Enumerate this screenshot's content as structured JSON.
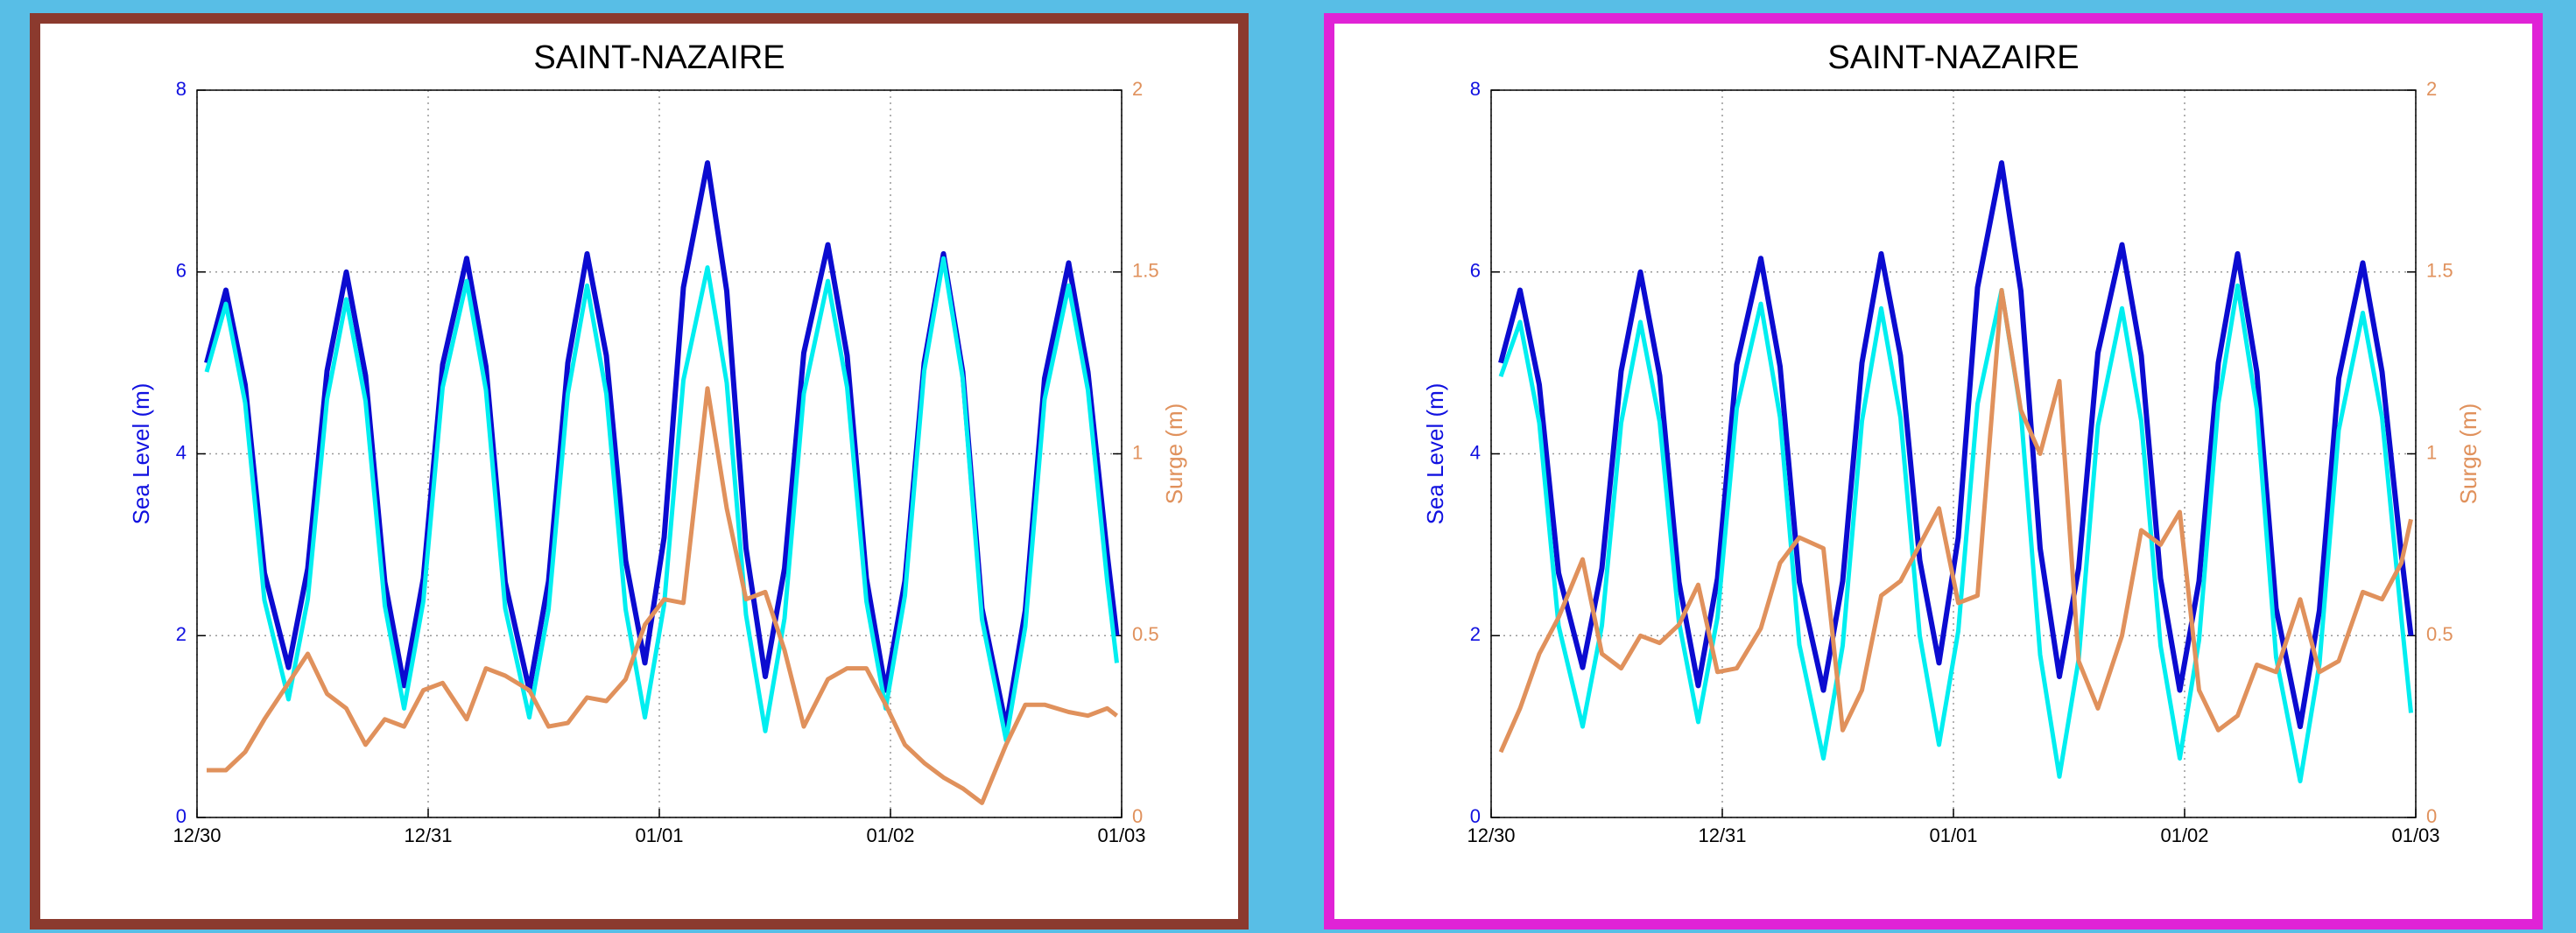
{
  "chart_data": [
    {
      "type": "line",
      "title": "SAINT-NAZAIRE",
      "ylabel": "Sea Level (m)",
      "y2label": "Surge (m)",
      "frame_color": "#8b3a2e",
      "grid": true,
      "x": [
        1,
        3,
        5,
        7,
        9.5,
        11.5,
        13.5,
        15.5,
        17.5,
        19.5,
        21.5,
        23.5,
        25.5,
        28,
        30,
        32,
        34.5,
        36.5,
        38.5,
        40.5,
        42.5,
        44.5,
        46.5,
        48.5,
        50.5,
        53,
        55,
        57,
        59,
        61,
        63,
        65.5,
        67.5,
        69.5,
        71.5,
        73.5,
        75.5,
        77.5,
        79.5,
        81.5,
        84,
        86,
        88,
        90.5,
        92.5,
        94.5,
        95.5
      ],
      "xlim": [
        0,
        96
      ],
      "xticks": [
        {
          "value": 0,
          "label": "12/30"
        },
        {
          "value": 24,
          "label": "12/31"
        },
        {
          "value": 48,
          "label": "01/01"
        },
        {
          "value": 72,
          "label": "01/02"
        },
        {
          "value": 96,
          "label": "01/03"
        }
      ],
      "ylim": [
        0,
        8
      ],
      "yticks": [
        0,
        2,
        4,
        6,
        8
      ],
      "y2lim": [
        0,
        2
      ],
      "y2ticks": [
        0,
        0.5,
        1,
        1.5,
        2
      ],
      "series": [
        {
          "color": "#0b0bd0",
          "values": [
            5.0,
            5.8,
            4.76,
            2.69,
            1.65,
            2.74,
            4.91,
            6.0,
            4.86,
            2.59,
            1.45,
            2.63,
            4.98,
            6.15,
            4.96,
            2.59,
            1.4,
            2.6,
            5.0,
            6.2,
            5.08,
            2.83,
            1.7,
            3.08,
            5.83,
            7.2,
            5.79,
            2.96,
            1.55,
            2.74,
            5.11,
            6.3,
            5.08,
            2.63,
            1.4,
            2.6,
            5.0,
            6.2,
            4.9,
            2.3,
            1.0,
            2.28,
            4.83,
            6.1,
            4.9,
            2.9,
            2.0
          ]
        },
        {
          "color": "#00eef0",
          "values": [
            4.9,
            5.65,
            4.56,
            2.39,
            1.3,
            2.4,
            4.6,
            5.7,
            4.58,
            2.33,
            1.2,
            2.38,
            4.73,
            5.9,
            4.7,
            2.3,
            1.1,
            2.29,
            4.66,
            5.85,
            4.66,
            2.29,
            1.1,
            2.34,
            4.81,
            6.05,
            4.78,
            2.23,
            0.95,
            2.19,
            4.66,
            5.9,
            4.73,
            2.38,
            1.2,
            2.44,
            4.91,
            6.15,
            4.83,
            2.18,
            0.85,
            2.1,
            4.6,
            5.85,
            4.7,
            2.6,
            1.7
          ]
        },
        {
          "color": "#e0915c",
          "axis": "y2",
          "values": [
            0.13,
            0.13,
            0.18,
            0.27,
            0.37,
            0.45,
            0.34,
            0.3,
            0.2,
            0.27,
            0.25,
            0.35,
            0.37,
            0.27,
            0.41,
            0.39,
            0.35,
            0.25,
            0.26,
            0.33,
            0.32,
            0.38,
            0.53,
            0.6,
            0.59,
            1.18,
            0.85,
            0.6,
            0.62,
            0.46,
            0.25,
            0.38,
            0.41,
            0.41,
            0.31,
            0.2,
            0.15,
            0.11,
            0.08,
            0.04,
            0.2,
            0.31,
            0.31,
            0.29,
            0.28,
            0.3,
            0.28
          ]
        }
      ]
    },
    {
      "type": "line",
      "title": "SAINT-NAZAIRE",
      "ylabel": "Sea Level (m)",
      "y2label": "Surge (m)",
      "frame_color": "#e023d6",
      "grid": true,
      "x": [
        1,
        3,
        5,
        7,
        9.5,
        11.5,
        13.5,
        15.5,
        17.5,
        19.5,
        21.5,
        23.5,
        25.5,
        28,
        30,
        32,
        34.5,
        36.5,
        38.5,
        40.5,
        42.5,
        44.5,
        46.5,
        48.5,
        50.5,
        53,
        55,
        57,
        59,
        61,
        63,
        65.5,
        67.5,
        69.5,
        71.5,
        73.5,
        75.5,
        77.5,
        79.5,
        81.5,
        84,
        86,
        88,
        90.5,
        92.5,
        94.5,
        95.5
      ],
      "xlim": [
        0,
        96
      ],
      "xticks": [
        {
          "value": 0,
          "label": "12/30"
        },
        {
          "value": 24,
          "label": "12/31"
        },
        {
          "value": 48,
          "label": "01/01"
        },
        {
          "value": 72,
          "label": "01/02"
        },
        {
          "value": 96,
          "label": "01/03"
        }
      ],
      "ylim": [
        0,
        8
      ],
      "yticks": [
        0,
        2,
        4,
        6,
        8
      ],
      "y2lim": [
        0,
        2
      ],
      "y2ticks": [
        0,
        0.5,
        1,
        1.5,
        2
      ],
      "series": [
        {
          "color": "#0b0bd0",
          "values": [
            5.0,
            5.8,
            4.76,
            2.69,
            1.65,
            2.74,
            4.91,
            6.0,
            4.86,
            2.59,
            1.45,
            2.63,
            4.98,
            6.15,
            4.96,
            2.59,
            1.4,
            2.6,
            5.0,
            6.2,
            5.08,
            2.83,
            1.7,
            3.08,
            5.83,
            7.2,
            5.79,
            2.96,
            1.55,
            2.74,
            5.11,
            6.3,
            5.08,
            2.63,
            1.4,
            2.6,
            5.0,
            6.2,
            4.9,
            2.3,
            1.0,
            2.28,
            4.83,
            6.1,
            4.9,
            2.9,
            2.0
          ]
        },
        {
          "color": "#00eef0",
          "values": [
            4.85,
            5.45,
            4.34,
            2.11,
            1.0,
            2.11,
            4.34,
            5.45,
            4.35,
            2.15,
            1.05,
            2.2,
            4.5,
            5.65,
            4.4,
            1.9,
            0.65,
            1.89,
            4.36,
            5.6,
            4.4,
            2.0,
            0.8,
            2.05,
            4.55,
            5.8,
            4.46,
            1.79,
            0.45,
            1.74,
            4.31,
            5.6,
            4.36,
            1.89,
            0.65,
            1.95,
            4.55,
            5.85,
            4.49,
            1.76,
            0.4,
            1.69,
            4.26,
            5.55,
            4.4,
            2.2,
            1.15
          ]
        },
        {
          "color": "#e0915c",
          "axis": "y2",
          "values": [
            0.18,
            0.3,
            0.45,
            0.55,
            0.71,
            0.45,
            0.41,
            0.5,
            0.48,
            0.53,
            0.64,
            0.4,
            0.41,
            0.52,
            0.7,
            0.77,
            0.74,
            0.24,
            0.35,
            0.61,
            0.65,
            0.75,
            0.85,
            0.59,
            0.61,
            1.45,
            1.12,
            1.0,
            1.2,
            0.43,
            0.3,
            0.5,
            0.79,
            0.75,
            0.84,
            0.35,
            0.24,
            0.28,
            0.42,
            0.4,
            0.6,
            0.4,
            0.43,
            0.62,
            0.6,
            0.7,
            0.82
          ]
        }
      ]
    }
  ]
}
